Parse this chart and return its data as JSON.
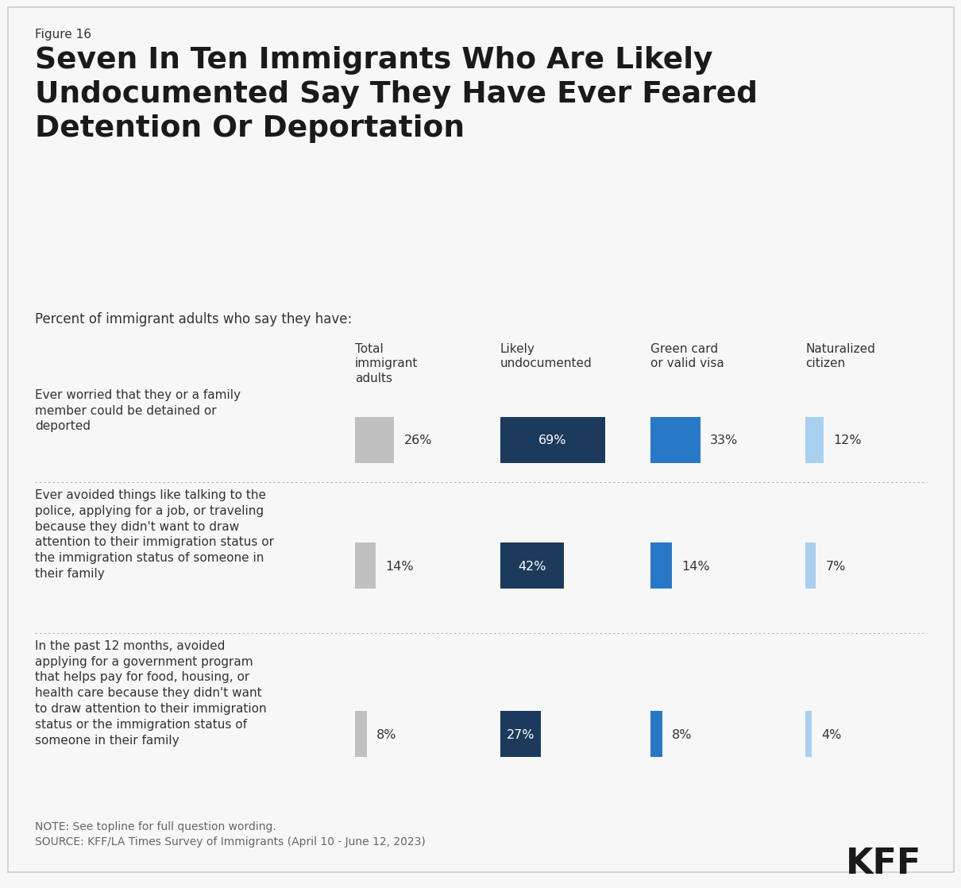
{
  "figure_label": "Figure 16",
  "title": "Seven In Ten Immigrants Who Are Likely\nUndocumented Say They Have Ever Feared\nDetention Or Deportation",
  "subtitle": "Percent of immigrant adults who say they have:",
  "column_headers": [
    "Total\nimmigrant\nadults",
    "Likely\nundocumented",
    "Green card\nor valid visa",
    "Naturalized\ncitizen"
  ],
  "row_labels": [
    "Ever worried that they or a family\nmember could be detained or\ndeported",
    "Ever avoided things like talking to the\npolice, applying for a job, or traveling\nbecause they didn't want to draw\nattention to their immigration status or\nthe immigration status of someone in\ntheir family",
    "In the past 12 months, avoided\napplying for a government program\nthat helps pay for food, housing, or\nhealth care because they didn't want\nto draw attention to their immigration\nstatus or the immigration status of\nsomeone in their family"
  ],
  "data": [
    [
      26,
      69,
      33,
      12
    ],
    [
      14,
      42,
      14,
      7
    ],
    [
      8,
      27,
      8,
      4
    ]
  ],
  "colors": [
    "#c0c0c0",
    "#1b3a5c",
    "#2878c8",
    "#a8d0f0"
  ],
  "note": "NOTE: See topline for full question wording.",
  "source": "SOURCE: KFF/LA Times Survey of Immigrants (April 10 - June 12, 2023)",
  "background_color": "#f7f7f7",
  "max_bar_value": 69,
  "text_color": "#333333",
  "title_color": "#1a1a1a",
  "kff_logo": "KFF"
}
